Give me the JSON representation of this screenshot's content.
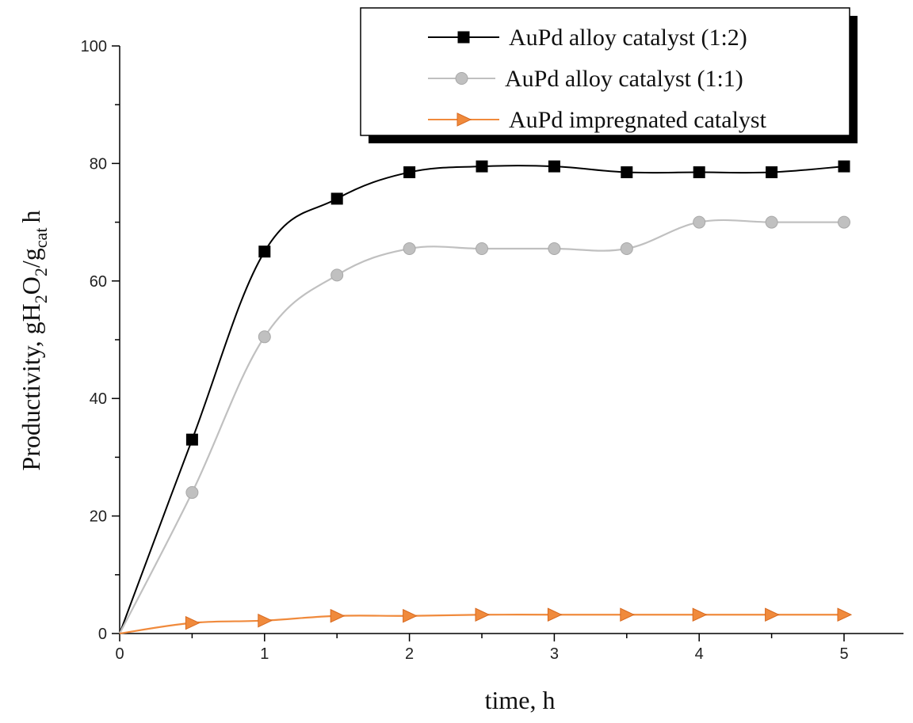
{
  "chart_data": {
    "type": "line",
    "xlabel": "time, h",
    "ylabel_parts": {
      "main": "Productivity, gH",
      "sub1": "2",
      "mid": "O",
      "sub2": "2",
      "slash": "/g",
      "sub3": "cat",
      "tail": "h"
    },
    "xlim": [
      0,
      5.4
    ],
    "ylim": [
      0,
      100
    ],
    "xticks": [
      "0",
      "1",
      "2",
      "3",
      "4",
      "5"
    ],
    "yticks": [
      "0",
      "20",
      "40",
      "60",
      "80",
      "100"
    ],
    "grid": false,
    "legend_position": "top-right",
    "series": [
      {
        "name": "AuPd alloy catalyst (1:2)",
        "color": "#000000",
        "marker": "square",
        "x": [
          0,
          0.5,
          1,
          1.5,
          2,
          2.5,
          3,
          3.5,
          4,
          4.5,
          5
        ],
        "y": [
          0,
          33,
          65,
          74,
          78.5,
          79.5,
          79.5,
          78.5,
          78.5,
          78.5,
          79.5
        ]
      },
      {
        "name": "AuPd alloy catalyst (1:1)",
        "color": "#c0c0c0",
        "marker": "circle",
        "x": [
          0,
          0.5,
          1,
          1.5,
          2,
          2.5,
          3,
          3.5,
          4,
          4.5,
          5
        ],
        "y": [
          0,
          24,
          50.5,
          61,
          65.5,
          65.5,
          65.5,
          65.5,
          70,
          70,
          70
        ]
      },
      {
        "name": "AuPd impregnated catalyst",
        "color": "#f08a3c",
        "marker": "triangle-right",
        "x": [
          0,
          0.5,
          1,
          1.5,
          2,
          2.5,
          3,
          3.5,
          4,
          4.5,
          5
        ],
        "y": [
          0,
          1.8,
          2.2,
          3,
          3,
          3.2,
          3.2,
          3.2,
          3.2,
          3.2,
          3.2
        ]
      }
    ]
  }
}
